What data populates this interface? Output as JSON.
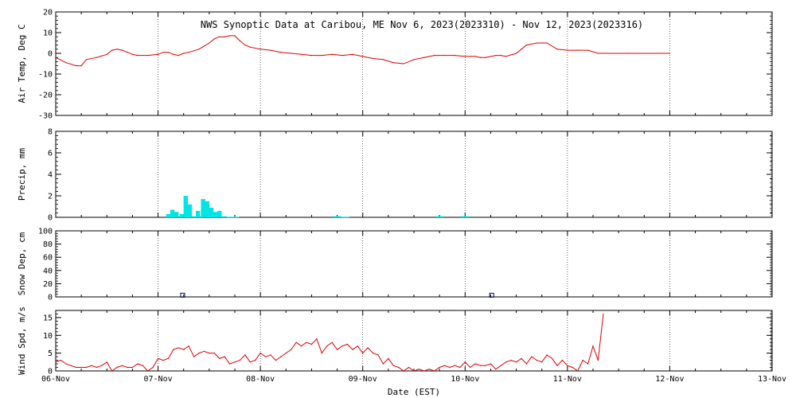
{
  "chart_data": {
    "title": "NWS Synoptic Data at Caribou, ME   Nov  6, 2023(2023310) - Nov 12, 2023(2023316)",
    "xlabel": "Date (EST)",
    "x_ticks": [
      "06-Nov",
      "07-Nov",
      "08-Nov",
      "09-Nov",
      "10-Nov",
      "11-Nov",
      "12-Nov",
      "13-Nov"
    ],
    "x_range_days": [
      0,
      7
    ],
    "grid": "dotted vertical lines at each day",
    "panels": [
      {
        "key": "air_temp",
        "type": "line",
        "ylabel": "Air Temp, Deg C",
        "ylim": [
          -30,
          20
        ],
        "yticks": [
          20,
          10,
          0,
          -10,
          -20,
          -30
        ],
        "color": "#dd0000",
        "series": [
          {
            "x": [
              0.0,
              0.1,
              0.2,
              0.25,
              0.3,
              0.4,
              0.5,
              0.55,
              0.6,
              0.65,
              0.7,
              0.75,
              0.8,
              0.9,
              1.0,
              1.05,
              1.1,
              1.15,
              1.2,
              1.25,
              1.3,
              1.4,
              1.45,
              1.5,
              1.55,
              1.6,
              1.65,
              1.7,
              1.75,
              1.8,
              1.85,
              1.9,
              2.0,
              2.1,
              2.2,
              2.3,
              2.4,
              2.5,
              2.6,
              2.7,
              2.8,
              2.9,
              3.0,
              3.1,
              3.2,
              3.3,
              3.4,
              3.5,
              3.6,
              3.7,
              3.8,
              3.9,
              4.0,
              4.05,
              4.1,
              4.15,
              4.2,
              4.3,
              4.35,
              4.4,
              4.5,
              4.55,
              4.6,
              4.7,
              4.8,
              4.9,
              5.0,
              5.1,
              5.2,
              5.3,
              5.6,
              6.0
            ],
            "y": [
              -2,
              -4.5,
              -6,
              -6,
              -3,
              -2,
              -0.5,
              1.5,
              2,
              1.5,
              0.5,
              -0.5,
              -1,
              -1,
              -0.5,
              0.5,
              0.5,
              -0.5,
              -1,
              0,
              0.5,
              2,
              3.5,
              5,
              7,
              8,
              8,
              8.5,
              8.5,
              6,
              4,
              3,
              2,
              1.5,
              0.5,
              0,
              -0.5,
              -1,
              -1,
              -0.5,
              -1,
              -0.5,
              -1.5,
              -2.5,
              -3,
              -4.5,
              -5,
              -3,
              -2,
              -1,
              -1,
              -1,
              -1.5,
              -1.5,
              -1.5,
              -2,
              -2,
              -1,
              -1,
              -1.5,
              0,
              2,
              4,
              5,
              5,
              2,
              1.5,
              1.5,
              1.5,
              0,
              0,
              0
            ]
          }
        ]
      },
      {
        "key": "precip",
        "type": "bar",
        "ylabel": "Precip, mm",
        "ylim": [
          0,
          8
        ],
        "yticks": [
          8,
          6,
          4,
          2,
          0
        ],
        "color": "#00e5e5",
        "bar_width_days": 0.042,
        "series": [
          {
            "x": [
              1.1,
              1.14,
              1.18,
              1.23,
              1.27,
              1.31,
              1.35,
              1.39,
              1.44,
              1.48,
              1.52,
              1.56,
              1.6,
              1.65,
              1.69,
              1.73,
              1.77,
              2.73,
              2.77,
              2.81,
              2.85,
              3.73,
              3.77,
              3.98,
              4.02
            ],
            "values": [
              0.3,
              0.7,
              0.5,
              0.3,
              2.0,
              1.2,
              0.1,
              0.6,
              1.7,
              1.5,
              0.9,
              0.5,
              0.6,
              0.1,
              0.05,
              0.05,
              0.05,
              0.1,
              0.1,
              0.05,
              0.05,
              0.1,
              0.1,
              0.1,
              0.1
            ]
          }
        ]
      },
      {
        "key": "snow_depth",
        "type": "scatter",
        "ylabel": "Snow Dep, cm",
        "ylim": [
          0,
          100
        ],
        "yticks": [
          100,
          80,
          60,
          40,
          20,
          0
        ],
        "color": "#000080",
        "series": [
          {
            "x": [
              1.24,
              4.26
            ],
            "values": [
              2,
              2
            ]
          }
        ]
      },
      {
        "key": "wind_speed",
        "type": "line",
        "ylabel": "Wind Spd, m/s",
        "ylim": [
          0,
          17
        ],
        "yticks": [
          15,
          10,
          5,
          0
        ],
        "color": "#dd0000",
        "series": [
          {
            "x": [
              0.0,
              0.05,
              0.1,
              0.15,
              0.2,
              0.3,
              0.35,
              0.4,
              0.45,
              0.5,
              0.55,
              0.6,
              0.65,
              0.7,
              0.75,
              0.8,
              0.85,
              0.9,
              0.95,
              1.0,
              1.05,
              1.1,
              1.15,
              1.2,
              1.25,
              1.3,
              1.35,
              1.4,
              1.45,
              1.5,
              1.55,
              1.6,
              1.65,
              1.7,
              1.75,
              1.8,
              1.85,
              1.9,
              1.95,
              2.0,
              2.05,
              2.1,
              2.15,
              2.2,
              2.25,
              2.3,
              2.35,
              2.4,
              2.45,
              2.5,
              2.55,
              2.6,
              2.65,
              2.7,
              2.75,
              2.8,
              2.85,
              2.9,
              2.95,
              3.0,
              3.05,
              3.1,
              3.15,
              3.2,
              3.25,
              3.3,
              3.35,
              3.4,
              3.45,
              3.5,
              3.55,
              3.6,
              3.65,
              3.7,
              3.75,
              3.8,
              3.85,
              3.9,
              3.95,
              4.0,
              4.05,
              4.1,
              4.15,
              4.2,
              4.25,
              4.3,
              4.35,
              4.4,
              4.45,
              4.5,
              4.55,
              4.6,
              4.65,
              4.7,
              4.75,
              4.8,
              4.85,
              4.9,
              4.95,
              5.0,
              5.05,
              5.1,
              5.15,
              5.2,
              5.25,
              5.3,
              5.35
            ],
            "y": [
              2.5,
              3,
              2,
              1.5,
              1,
              1,
              1.5,
              1,
              1.5,
              2.5,
              0,
              1,
              1.5,
              1,
              1,
              2,
              1.5,
              0,
              1,
              3.5,
              3,
              3.5,
              6,
              6.5,
              6,
              7,
              4,
              5,
              5.5,
              5,
              5,
              3.5,
              4,
              2,
              2.5,
              3,
              4.5,
              2.5,
              3,
              5,
              4,
              4.5,
              3,
              4,
              5,
              6,
              8,
              7,
              8,
              7.5,
              9,
              5,
              7,
              8,
              6,
              7,
              7.5,
              6,
              7,
              5,
              6.5,
              5,
              4.5,
              2,
              3.5,
              1.5,
              1,
              0,
              1,
              0,
              0.5,
              0,
              0.5,
              0,
              1,
              1.5,
              1,
              1.5,
              1,
              2.5,
              1,
              2,
              1.5,
              1.5,
              2,
              0.5,
              1.5,
              2.5,
              3,
              2.5,
              3.5,
              2,
              4,
              3,
              2.5,
              4.5,
              3.5,
              1.5,
              3,
              1.5,
              1,
              0,
              3,
              2,
              7,
              3,
              16
            ]
          }
        ]
      }
    ]
  }
}
